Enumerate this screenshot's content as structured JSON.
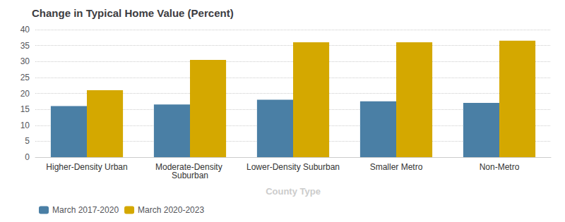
{
  "chart_data": {
    "type": "bar",
    "title": "Change in Typical Home Value (Percent)",
    "xlabel": "County Type",
    "categories": [
      "Higher-Density Urban",
      "Moderate-Density Suburban",
      "Lower-Density Suburban",
      "Smaller Metro",
      "Non-Metro"
    ],
    "series": [
      {
        "name": "March 2017-2020",
        "color": "#4a7fa5",
        "values": [
          16,
          16.5,
          18,
          17.5,
          17
        ]
      },
      {
        "name": "March 2020-2023",
        "color": "#d4a800",
        "values": [
          21,
          30.5,
          36,
          36,
          36.5
        ]
      }
    ],
    "ylim": [
      0,
      40
    ],
    "yticks": [
      0,
      5,
      10,
      15,
      20,
      25,
      30,
      35,
      40
    ],
    "grid": true,
    "legend": "bottom-left"
  }
}
